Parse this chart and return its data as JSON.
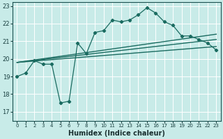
{
  "xlabel": "Humidex (Indice chaleur)",
  "background_color": "#c8ebe8",
  "grid_color": "#ffffff",
  "line_color": "#1a6b60",
  "xlim": [
    -0.5,
    23.5
  ],
  "ylim": [
    16.5,
    23.2
  ],
  "xticks": [
    0,
    1,
    2,
    3,
    4,
    5,
    6,
    7,
    8,
    9,
    10,
    11,
    12,
    13,
    14,
    15,
    16,
    17,
    18,
    19,
    20,
    21,
    22,
    23
  ],
  "yticks": [
    17,
    18,
    19,
    20,
    21,
    22,
    23
  ],
  "main_x": [
    0,
    1,
    2,
    3,
    4,
    5,
    6,
    7,
    8,
    9,
    10,
    11,
    12,
    13,
    14,
    15,
    16,
    17,
    18,
    19,
    20,
    21,
    22,
    23
  ],
  "main_y": [
    19.0,
    19.2,
    19.9,
    19.7,
    19.7,
    17.5,
    17.6,
    20.9,
    20.3,
    21.5,
    21.6,
    22.2,
    22.1,
    22.2,
    22.5,
    22.9,
    22.6,
    22.1,
    21.9,
    21.3,
    21.3,
    21.1,
    20.9,
    20.5
  ],
  "reg_lines": [
    {
      "x0": 0.0,
      "y0": 19.8,
      "x1": 23.0,
      "y1": 21.4
    },
    {
      "x0": 0.0,
      "y0": 19.8,
      "x1": 23.0,
      "y1": 21.1
    },
    {
      "x0": 0.0,
      "y0": 19.8,
      "x1": 23.0,
      "y1": 20.7
    }
  ]
}
